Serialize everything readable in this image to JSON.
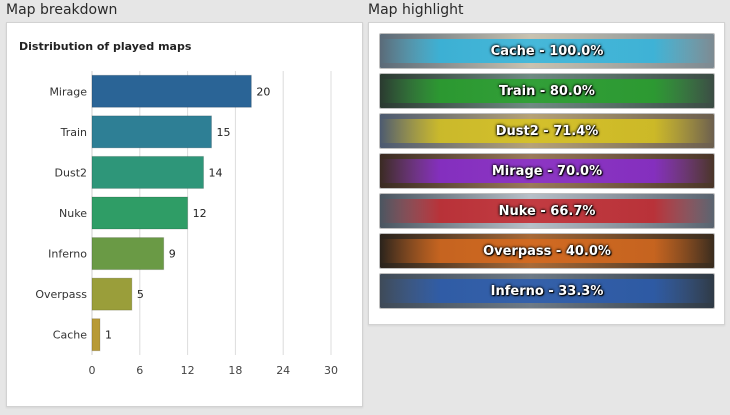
{
  "headings": {
    "map_breakdown": "Map breakdown",
    "map_highlight": "Map highlight"
  },
  "chart_data": {
    "type": "bar",
    "orientation": "horizontal",
    "title": "Distribution of played maps",
    "categories": [
      "Mirage",
      "Train",
      "Dust2",
      "Nuke",
      "Inferno",
      "Overpass",
      "Cache"
    ],
    "values": [
      20,
      15,
      14,
      12,
      9,
      5,
      1
    ],
    "colors": [
      "#2a6496",
      "#2e7f95",
      "#2e9679",
      "#2f9d66",
      "#6a9a45",
      "#9a9e3a",
      "#b89a35"
    ],
    "xlim": [
      0,
      30
    ],
    "xticks": [
      0,
      6,
      12,
      18,
      24,
      30
    ],
    "grid": true,
    "legend": "none"
  },
  "highlights": [
    {
      "label": "Cache - 100.0%",
      "band": "#2fb6e0",
      "bg": [
        "#5a6a78",
        "#c9c2b0",
        "#7d8a92"
      ]
    },
    {
      "label": "Train - 80.0%",
      "band": "#27a32b",
      "bg": [
        "#2a3a30",
        "#6f8a82",
        "#3b4c44"
      ]
    },
    {
      "label": "Dust2 - 71.4%",
      "band": "#d9c51e",
      "bg": [
        "#4c5a70",
        "#b6a277",
        "#6c5f4e"
      ]
    },
    {
      "label": "Mirage - 70.0%",
      "band": "#8a2ad6",
      "bg": [
        "#3a2a22",
        "#9a7a5a",
        "#4a3528"
      ]
    },
    {
      "label": "Nuke - 66.7%",
      "band": "#c4242a",
      "bg": [
        "#4a5560",
        "#b7c0c8",
        "#5a6470"
      ]
    },
    {
      "label": "Overpass - 40.0%",
      "band": "#d86a1e",
      "bg": [
        "#2a231c",
        "#a86a38",
        "#3a2c1e"
      ]
    },
    {
      "label": "Inferno - 33.3%",
      "band": "#2a5cb0",
      "bg": [
        "#3e4a58",
        "#6e7a86",
        "#2f3a46"
      ]
    }
  ]
}
